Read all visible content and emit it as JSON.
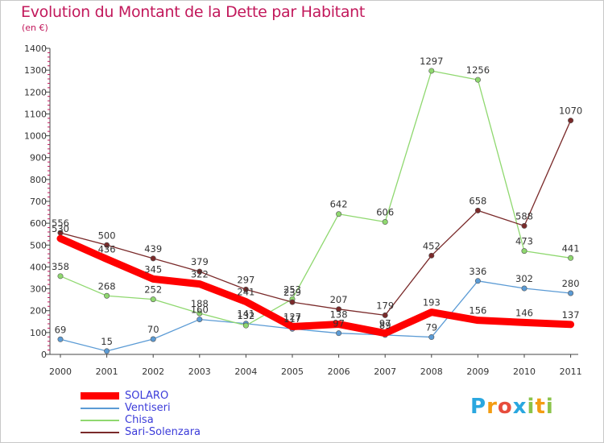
{
  "title": "Evolution du Montant de la Dette par Habitant",
  "subtitle": "(en €)",
  "logo": {
    "text": "Proxiti",
    "letters": [
      "P",
      "r",
      "o",
      "x",
      "i",
      "t",
      "i"
    ],
    "colors": [
      "#2aa7df",
      "#f39c12",
      "#e74c3c",
      "#2aa7df",
      "#8bc34a",
      "#f39c12",
      "#8bc34a"
    ]
  },
  "chart_data": {
    "type": "line",
    "x": [
      "2000",
      "2001",
      "2002",
      "2003",
      "2004",
      "2005",
      "2006",
      "2007",
      "2008",
      "2009",
      "2010",
      "2011"
    ],
    "ylim": [
      0,
      1400
    ],
    "yticks": [
      0,
      100,
      200,
      300,
      400,
      500,
      600,
      700,
      800,
      900,
      1000,
      1100,
      1200,
      1300,
      1400
    ],
    "grid": false,
    "legend": "bottom-left",
    "series": [
      {
        "name": "Ventiseri",
        "color": "#5b9bd5",
        "values": [
          69,
          15,
          70,
          160,
          141,
          117,
          97,
          89,
          79,
          336,
          302,
          280
        ]
      },
      {
        "name": "Chisa",
        "color": "#8fd86f",
        "values": [
          358,
          268,
          252,
          188,
          132,
          253,
          642,
          606,
          1297,
          1256,
          473,
          441
        ]
      },
      {
        "name": "Sari-Solenzara",
        "color": "#7a2a2a",
        "values": [
          556,
          500,
          439,
          379,
          297,
          239,
          207,
          179,
          452,
          658,
          588,
          1070
        ]
      },
      {
        "name": "SOLARO",
        "color": "#ff0000",
        "values": [
          530,
          436,
          345,
          322,
          241,
          127,
          138,
          97,
          193,
          156,
          146,
          137
        ]
      }
    ],
    "legend_order": [
      "SOLARO",
      "Ventiseri",
      "Chisa",
      "Sari-Solenzara"
    ]
  }
}
